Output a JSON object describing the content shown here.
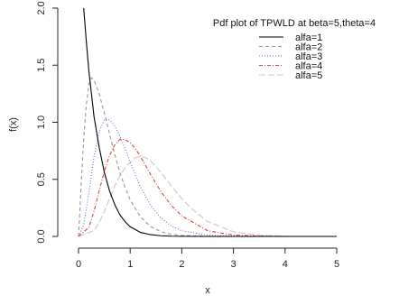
{
  "chart_data": {
    "type": "line",
    "title": "",
    "xlabel": "x",
    "ylabel": "f(x)",
    "xlim": [
      0,
      5
    ],
    "ylim": [
      0,
      2
    ],
    "xticks": [
      "0",
      "1",
      "2",
      "3",
      "4",
      "5"
    ],
    "yticks": [
      "0.0",
      "0.5",
      "1.0",
      "1.5",
      "2.0"
    ],
    "grid": false,
    "legend": {
      "placement": "top-right",
      "title": "Pdf plot of TPWLD at beta=5,theta=4"
    },
    "series": [
      {
        "name": "alfa=1",
        "color": "#000000",
        "dash": "solid",
        "points": [
          [
            0.1,
            2.0
          ],
          [
            0.15,
            1.71
          ],
          [
            0.2,
            1.45
          ],
          [
            0.3,
            1.05
          ],
          [
            0.4,
            0.78
          ],
          [
            0.5,
            0.56
          ],
          [
            0.6,
            0.4
          ],
          [
            0.7,
            0.28
          ],
          [
            0.8,
            0.19
          ],
          [
            0.9,
            0.13
          ],
          [
            1.0,
            0.085
          ],
          [
            1.2,
            0.035
          ],
          [
            1.4,
            0.015
          ],
          [
            1.6,
            0.006
          ],
          [
            1.8,
            0.002
          ],
          [
            2.0,
            0.001
          ],
          [
            2.5,
            0.0
          ],
          [
            3.0,
            0.0
          ],
          [
            4.0,
            0.0
          ],
          [
            5.0,
            0.0
          ]
        ]
      },
      {
        "name": "alfa=2",
        "color": "#999999",
        "dash": "dashed",
        "points": [
          [
            0.0,
            0.0
          ],
          [
            0.05,
            0.45
          ],
          [
            0.1,
            0.85
          ],
          [
            0.15,
            1.15
          ],
          [
            0.2,
            1.33
          ],
          [
            0.25,
            1.39
          ],
          [
            0.3,
            1.37
          ],
          [
            0.4,
            1.25
          ],
          [
            0.5,
            1.08
          ],
          [
            0.6,
            0.9
          ],
          [
            0.7,
            0.72
          ],
          [
            0.8,
            0.56
          ],
          [
            0.9,
            0.43
          ],
          [
            1.0,
            0.32
          ],
          [
            1.2,
            0.17
          ],
          [
            1.4,
            0.085
          ],
          [
            1.6,
            0.04
          ],
          [
            1.8,
            0.018
          ],
          [
            2.0,
            0.008
          ],
          [
            2.5,
            0.001
          ],
          [
            3.0,
            0.0
          ],
          [
            4.0,
            0.0
          ],
          [
            5.0,
            0.0
          ]
        ]
      },
      {
        "name": "alfa=3",
        "color": "#6677cc",
        "dash": "dotted",
        "points": [
          [
            0.0,
            0.0
          ],
          [
            0.1,
            0.1
          ],
          [
            0.2,
            0.38
          ],
          [
            0.3,
            0.7
          ],
          [
            0.4,
            0.92
          ],
          [
            0.5,
            1.02
          ],
          [
            0.55,
            1.03
          ],
          [
            0.6,
            1.02
          ],
          [
            0.7,
            0.97
          ],
          [
            0.8,
            0.88
          ],
          [
            0.9,
            0.77
          ],
          [
            1.0,
            0.65
          ],
          [
            1.2,
            0.43
          ],
          [
            1.4,
            0.27
          ],
          [
            1.6,
            0.16
          ],
          [
            1.8,
            0.09
          ],
          [
            2.0,
            0.05
          ],
          [
            2.5,
            0.01
          ],
          [
            3.0,
            0.002
          ],
          [
            3.5,
            0.0
          ],
          [
            4.0,
            0.0
          ],
          [
            5.0,
            0.0
          ]
        ]
      },
      {
        "name": "alfa=4",
        "color": "#dd4444",
        "dash": "dashdot",
        "points": [
          [
            0.0,
            0.0
          ],
          [
            0.2,
            0.08
          ],
          [
            0.3,
            0.22
          ],
          [
            0.4,
            0.4
          ],
          [
            0.5,
            0.57
          ],
          [
            0.6,
            0.71
          ],
          [
            0.7,
            0.8
          ],
          [
            0.8,
            0.85
          ],
          [
            0.9,
            0.85
          ],
          [
            1.0,
            0.82
          ],
          [
            1.1,
            0.77
          ],
          [
            1.2,
            0.7
          ],
          [
            1.4,
            0.54
          ],
          [
            1.6,
            0.39
          ],
          [
            1.8,
            0.27
          ],
          [
            2.0,
            0.18
          ],
          [
            2.5,
            0.05
          ],
          [
            3.0,
            0.012
          ],
          [
            3.5,
            0.003
          ],
          [
            4.0,
            0.0
          ],
          [
            5.0,
            0.0
          ]
        ]
      },
      {
        "name": "alfa=5",
        "color": "#c9c9c9",
        "dash": "longdash",
        "points": [
          [
            0.0,
            0.0
          ],
          [
            0.3,
            0.05
          ],
          [
            0.4,
            0.12
          ],
          [
            0.5,
            0.22
          ],
          [
            0.6,
            0.33
          ],
          [
            0.7,
            0.44
          ],
          [
            0.8,
            0.53
          ],
          [
            0.9,
            0.6
          ],
          [
            1.0,
            0.65
          ],
          [
            1.1,
            0.69
          ],
          [
            1.2,
            0.7
          ],
          [
            1.3,
            0.69
          ],
          [
            1.4,
            0.66
          ],
          [
            1.6,
            0.56
          ],
          [
            1.8,
            0.44
          ],
          [
            2.0,
            0.33
          ],
          [
            2.2,
            0.24
          ],
          [
            2.5,
            0.13
          ],
          [
            3.0,
            0.04
          ],
          [
            3.5,
            0.01
          ],
          [
            4.0,
            0.002
          ],
          [
            4.5,
            0.0
          ],
          [
            5.0,
            0.0
          ]
        ]
      }
    ]
  }
}
